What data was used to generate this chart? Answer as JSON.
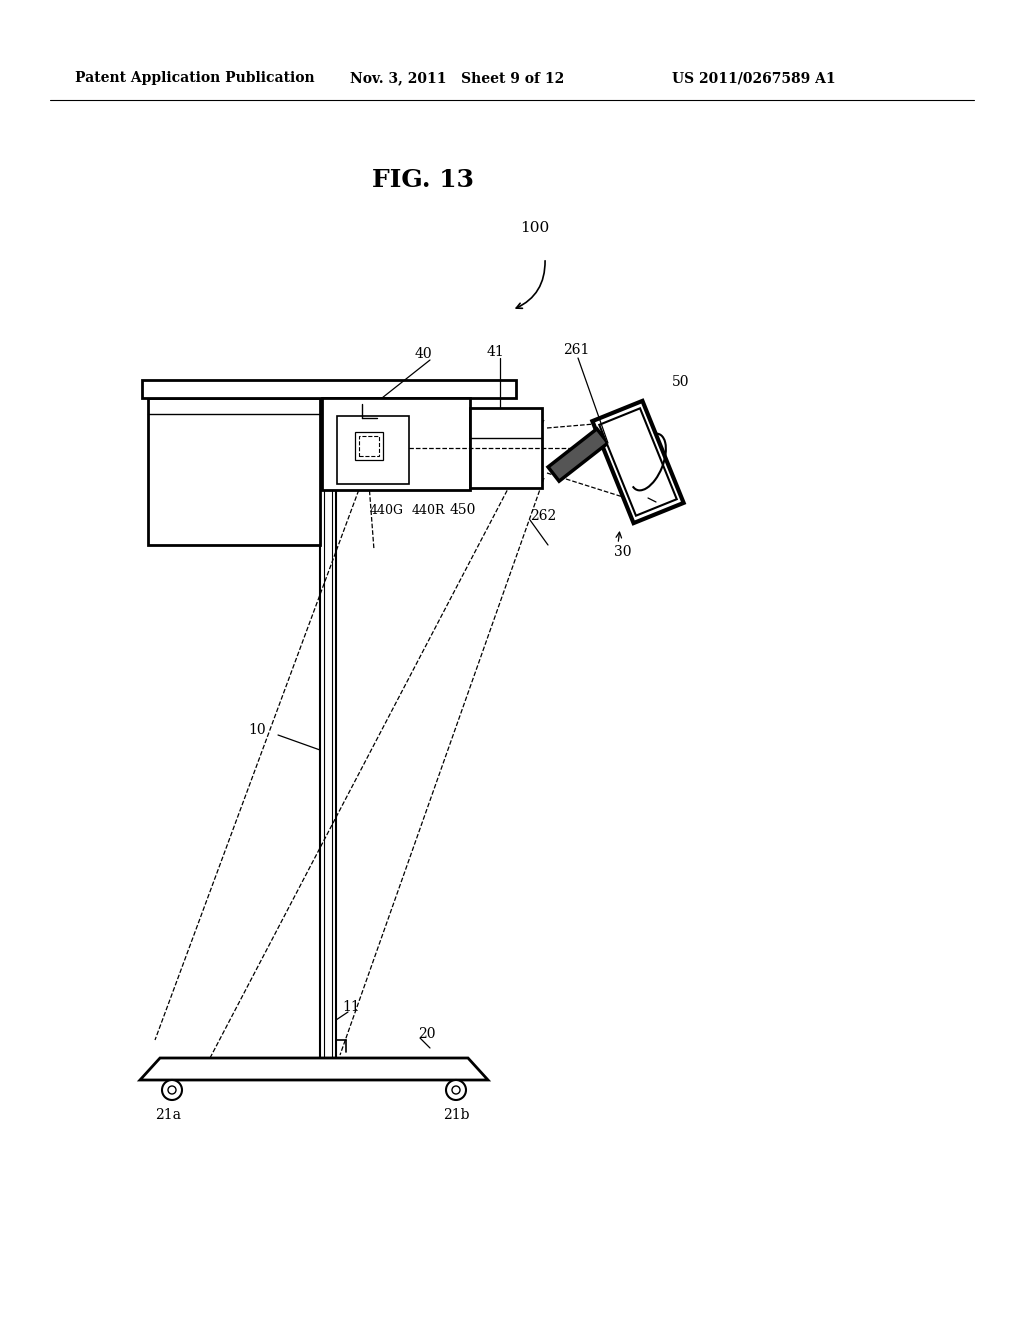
{
  "bg": "#ffffff",
  "header_left": "Patent Application Publication",
  "header_mid": "Nov. 3, 2011   Sheet 9 of 12",
  "header_right": "US 2011/0267589 A1",
  "fig_label": "FIG. 13",
  "lw_thick": 2.0,
  "lw_med": 1.5,
  "lw_thin": 1.0,
  "lw_dash": 0.9
}
